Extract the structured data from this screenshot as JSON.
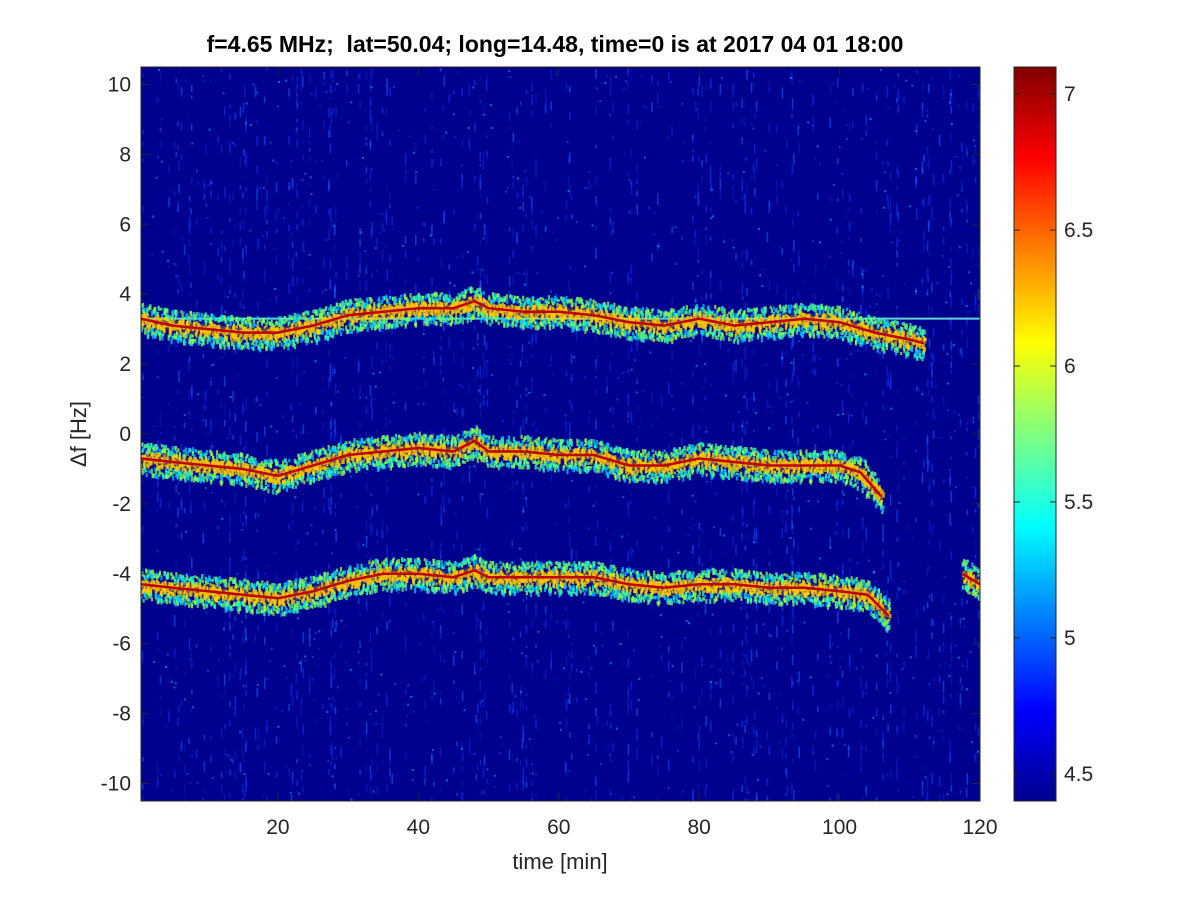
{
  "chart_data": {
    "type": "heatmap",
    "title": "f=4.65 MHz;  lat=50.04; long=14.48, time=0 is at 2017 04 01 18:00",
    "xlabel": "time [min]",
    "ylabel": "Δf [Hz]",
    "xlim": [
      0.5,
      120
    ],
    "ylim": [
      -10.5,
      10.5
    ],
    "xticks": [
      20,
      40,
      60,
      80,
      100,
      120
    ],
    "yticks": [
      -10,
      -8,
      -6,
      -4,
      -2,
      0,
      2,
      4,
      6,
      8,
      10
    ],
    "colorbar": {
      "colormap": "jet",
      "range": [
        4.4,
        7.1
      ],
      "ticks": [
        4.5,
        5,
        5.5,
        6,
        6.5,
        7
      ]
    },
    "grid": false,
    "reference_line": {
      "y": 3.3,
      "x_range": [
        0.5,
        120
      ]
    },
    "traces": [
      {
        "name": "",
        "t": [
          0.5,
          5,
          10,
          15,
          20,
          25,
          30,
          35,
          40,
          45,
          48,
          50,
          55,
          60,
          65,
          70,
          75,
          80,
          85,
          90,
          95,
          100,
          105,
          110,
          112
        ],
        "df": [
          3.3,
          3.1,
          3.0,
          2.9,
          2.9,
          3.1,
          3.4,
          3.5,
          3.6,
          3.6,
          3.8,
          3.6,
          3.5,
          3.5,
          3.4,
          3.2,
          3.1,
          3.3,
          3.1,
          3.2,
          3.3,
          3.2,
          2.9,
          2.7,
          2.6
        ]
      },
      {
        "name": "",
        "t": [
          0.5,
          5,
          10,
          15,
          20,
          25,
          30,
          35,
          40,
          45,
          48,
          50,
          55,
          60,
          65,
          70,
          75,
          80,
          85,
          90,
          95,
          100,
          103,
          106
        ],
        "df": [
          -0.7,
          -0.8,
          -0.9,
          -1.0,
          -1.2,
          -0.9,
          -0.6,
          -0.5,
          -0.4,
          -0.5,
          -0.2,
          -0.5,
          -0.5,
          -0.6,
          -0.6,
          -0.9,
          -0.9,
          -0.7,
          -0.8,
          -0.9,
          -0.9,
          -0.9,
          -1.1,
          -1.8
        ]
      },
      {
        "name": "",
        "t": [
          0.5,
          5,
          10,
          15,
          20,
          25,
          30,
          35,
          40,
          45,
          48,
          50,
          55,
          60,
          65,
          70,
          75,
          80,
          85,
          90,
          95,
          100,
          104,
          107
        ],
        "df": [
          -4.3,
          -4.4,
          -4.5,
          -4.6,
          -4.7,
          -4.5,
          -4.2,
          -4.0,
          -4.0,
          -4.1,
          -3.9,
          -4.1,
          -4.1,
          -4.1,
          -4.1,
          -4.3,
          -4.4,
          -4.3,
          -4.3,
          -4.4,
          -4.4,
          -4.5,
          -4.6,
          -5.2
        ]
      },
      {
        "name": "",
        "t": [
          117.5,
          120
        ],
        "df": [
          -4.0,
          -4.3
        ]
      }
    ]
  }
}
